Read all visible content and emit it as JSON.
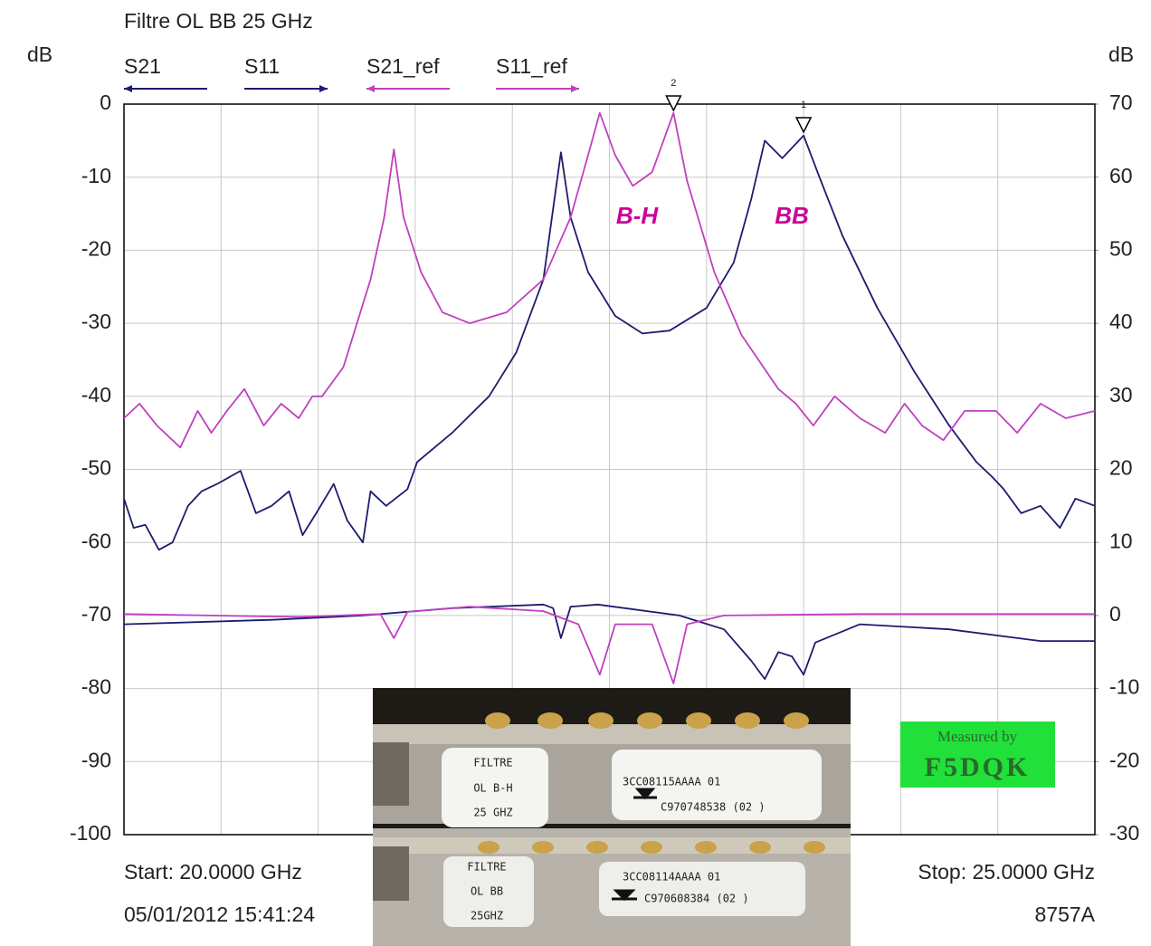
{
  "chart_data": {
    "type": "line",
    "title": "Filtre OL BB 25 GHz",
    "y_label": "dB",
    "y2_label": "dB",
    "xlim": [
      20,
      25
    ],
    "ylim": [
      -100,
      0
    ],
    "yticks": [
      0,
      -10,
      -20,
      -30,
      -40,
      -50,
      -60,
      -70,
      -80,
      -90,
      -100
    ],
    "y2lim": [
      -30,
      70
    ],
    "y2ticks": [
      70,
      60,
      50,
      40,
      30,
      20,
      10,
      0,
      -10,
      -20,
      -30
    ],
    "grid": true,
    "start_label": "Start: 20.0000 GHz",
    "stop_label": "Stop: 25.0000 GHz",
    "timestamp": "05/01/2012 15:41:24",
    "instrument": "8757A",
    "series": [
      {
        "name": "S21",
        "color": "#1c1c6e",
        "axis": "y",
        "x": [
          20.0,
          20.05,
          20.11,
          20.18,
          20.25,
          20.33,
          20.4,
          20.48,
          20.6,
          20.68,
          20.76,
          20.85,
          20.92,
          20.99,
          21.08,
          21.15,
          21.23,
          21.27,
          21.35,
          21.46,
          21.51,
          21.69,
          21.88,
          22.02,
          22.16,
          22.21,
          22.25,
          22.3,
          22.39,
          22.53,
          22.67,
          22.81,
          23.0,
          23.14,
          23.23,
          23.3,
          23.39,
          23.5,
          23.58,
          23.7,
          23.88,
          24.07,
          24.25,
          24.39,
          24.47,
          24.53,
          24.62,
          24.72,
          24.82,
          24.9,
          25.0
        ],
        "values": [
          -54,
          -58,
          -57.6,
          -61,
          -60,
          -55,
          -53,
          -52,
          -50.2,
          -56,
          -55,
          -53,
          -59,
          -56,
          -52,
          -57,
          -60,
          -53,
          -55,
          -52.7,
          -49,
          -45,
          -40,
          -34,
          -24,
          -14.3,
          -6.6,
          -15.5,
          -23,
          -29,
          -31.4,
          -31,
          -27.9,
          -21.7,
          -13,
          -5,
          -7.4,
          -4.3,
          -9.9,
          -18,
          -27.9,
          -36.6,
          -44,
          -49,
          -51,
          -52.7,
          -56,
          -55,
          -58,
          -54,
          -55
        ]
      },
      {
        "name": "S11",
        "color": "#1c1c6e",
        "axis": "y2",
        "x": [
          20.0,
          20.76,
          21.23,
          21.69,
          22.16,
          22.21,
          22.25,
          22.3,
          22.44,
          22.86,
          23.09,
          23.23,
          23.3,
          23.37,
          23.44,
          23.5,
          23.56,
          23.79,
          24.25,
          24.72,
          25.0
        ],
        "values": [
          -1.2,
          -0.6,
          0,
          1,
          1.5,
          1,
          -3.1,
          1.2,
          1.5,
          0,
          -1.9,
          -6.2,
          -8.7,
          -5,
          -5.6,
          -8.1,
          -3.7,
          -1.2,
          -1.9,
          -3.5,
          -3.5
        ]
      },
      {
        "name": "S21_ref",
        "color": "#c040c0",
        "axis": "y",
        "x": [
          20.0,
          20.08,
          20.17,
          20.29,
          20.38,
          20.45,
          20.53,
          20.62,
          20.72,
          20.81,
          20.9,
          20.97,
          21.02,
          21.13,
          21.27,
          21.34,
          21.39,
          21.44,
          21.53,
          21.64,
          21.78,
          21.97,
          22.16,
          22.3,
          22.39,
          22.45,
          22.53,
          22.62,
          22.72,
          22.83,
          22.9,
          23.04,
          23.18,
          23.37,
          23.46,
          23.55,
          23.66,
          23.79,
          23.92,
          24.02,
          24.11,
          24.22,
          24.33,
          24.49,
          24.6,
          24.72,
          24.85,
          25.0
        ],
        "values": [
          -43,
          -41,
          -44,
          -47,
          -42,
          -45,
          -42,
          -39,
          -44,
          -41,
          -43,
          -40,
          -40,
          -36,
          -24,
          -15.5,
          -6.2,
          -15.5,
          -23,
          -28.5,
          -30,
          -28.5,
          -24,
          -15.5,
          -7,
          -1.2,
          -7,
          -11.2,
          -9.3,
          -1.2,
          -10.5,
          -23,
          -31.6,
          -39,
          -41,
          -44,
          -40,
          -43,
          -45,
          -41,
          -44,
          -46,
          -42,
          -42,
          -45,
          -41,
          -43,
          -42
        ]
      },
      {
        "name": "S11_ref",
        "color": "#c040c0",
        "axis": "y2",
        "x": [
          20.0,
          20.9,
          21.32,
          21.39,
          21.46,
          21.78,
          22.16,
          22.34,
          22.45,
          22.53,
          22.72,
          22.83,
          22.9,
          23.09,
          23.79,
          25.0
        ],
        "values": [
          0.2,
          -0.2,
          0.2,
          -3.1,
          0.5,
          1.2,
          0.6,
          -1.2,
          -8.1,
          -1.2,
          -1.2,
          -9.3,
          -1.2,
          0,
          0.2,
          0.2
        ]
      }
    ],
    "markers": [
      {
        "label": "1",
        "x": 23.5
      },
      {
        "label": "2",
        "x": 22.83
      }
    ],
    "annotations": [
      {
        "text": "B-H",
        "color": "#cc0099"
      },
      {
        "text": "BB",
        "color": "#cc0099"
      }
    ]
  },
  "stamp": {
    "line1": "Measured by",
    "line2": "F5DQK"
  },
  "photo": {
    "filter_top": {
      "l1": "FILTRE",
      "l2": "OL B-H",
      "l3": "25 GHZ",
      "ref": "3CC08115AAAA  01",
      "serial": "C970748538  (02  )"
    },
    "filter_bottom": {
      "l1": "FILTRE",
      "l2": "OL BB",
      "l3": "25GHZ",
      "ref": "3CC08114AAAA  01",
      "serial": "C970608384 (02  )"
    }
  }
}
